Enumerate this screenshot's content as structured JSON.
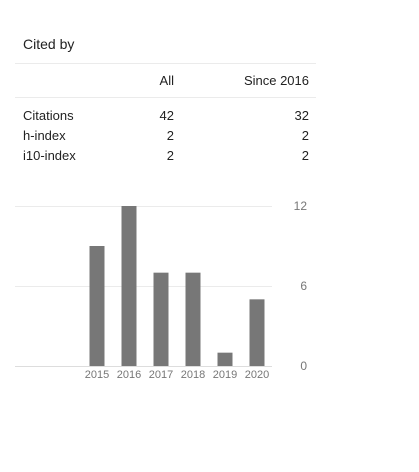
{
  "title": "Cited by",
  "table": {
    "headers": {
      "all": "All",
      "since": "Since 2016"
    },
    "rows": [
      {
        "label": "Citations",
        "all": "42",
        "since": "32"
      },
      {
        "label": "h-index",
        "all": "2",
        "since": "2"
      },
      {
        "label": "i10-index",
        "all": "2",
        "since": "2"
      }
    ]
  },
  "chart_data": {
    "type": "bar",
    "categories": [
      "2015",
      "2016",
      "2017",
      "2018",
      "2019",
      "2020"
    ],
    "values": [
      9,
      12,
      7,
      7,
      1,
      5
    ],
    "ylim": [
      0,
      12
    ],
    "yticks": [
      "0",
      "6",
      "12"
    ],
    "title": "",
    "xlabel": "",
    "ylabel": "",
    "grid": true,
    "bar_color": "#777777"
  }
}
